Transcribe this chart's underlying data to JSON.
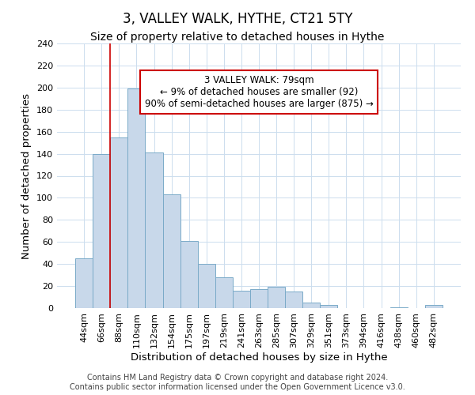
{
  "title": "3, VALLEY WALK, HYTHE, CT21 5TY",
  "subtitle": "Size of property relative to detached houses in Hythe",
  "bar_labels": [
    "44sqm",
    "66sqm",
    "88sqm",
    "110sqm",
    "132sqm",
    "154sqm",
    "175sqm",
    "197sqm",
    "219sqm",
    "241sqm",
    "263sqm",
    "285sqm",
    "307sqm",
    "329sqm",
    "351sqm",
    "373sqm",
    "394sqm",
    "416sqm",
    "438sqm",
    "460sqm",
    "482sqm"
  ],
  "bar_heights": [
    45,
    140,
    155,
    199,
    141,
    103,
    61,
    40,
    28,
    16,
    17,
    19,
    15,
    5,
    3,
    0,
    0,
    0,
    1,
    0,
    3
  ],
  "bar_color": "#c8d8ea",
  "bar_edgecolor": "#7aaac8",
  "vline_color": "#cc0000",
  "vline_x_index": 1.5,
  "ylim": [
    0,
    240
  ],
  "yticks": [
    0,
    20,
    40,
    60,
    80,
    100,
    120,
    140,
    160,
    180,
    200,
    220,
    240
  ],
  "ylabel": "Number of detached properties",
  "xlabel": "Distribution of detached houses by size in Hythe",
  "annotation_line1": "3 VALLEY WALK: 79sqm",
  "annotation_line2": "← 9% of detached houses are smaller (92)",
  "annotation_line3": "90% of semi-detached houses are larger (875) →",
  "annotation_box_color": "#ffffff",
  "annotation_box_edgecolor": "#cc0000",
  "footer_text": "Contains HM Land Registry data © Crown copyright and database right 2024.\nContains public sector information licensed under the Open Government Licence v3.0.",
  "grid_color": "#ccddee",
  "background_color": "#ffffff",
  "title_fontsize": 12,
  "subtitle_fontsize": 10,
  "axis_label_fontsize": 9.5,
  "tick_fontsize": 8,
  "annotation_fontsize": 8.5,
  "footer_fontsize": 7
}
